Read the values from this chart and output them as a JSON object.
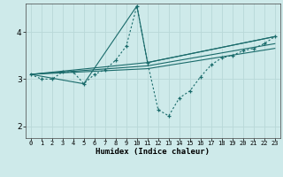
{
  "xlabel": "Humidex (Indice chaleur)",
  "background_color": "#ceeaea",
  "grid_color": "#b8d8d8",
  "line_color": "#1a6b6b",
  "xlim": [
    -0.5,
    23.5
  ],
  "ylim": [
    1.75,
    4.6
  ],
  "yticks": [
    2,
    3,
    4
  ],
  "xticks": [
    0,
    1,
    2,
    3,
    4,
    5,
    6,
    7,
    8,
    9,
    10,
    11,
    12,
    13,
    14,
    15,
    16,
    17,
    18,
    19,
    20,
    21,
    22,
    23
  ],
  "main_series": {
    "x": [
      0,
      1,
      2,
      3,
      4,
      5,
      6,
      7,
      8,
      9,
      10,
      11,
      12,
      13,
      14,
      15,
      16,
      17,
      18,
      19,
      20,
      21,
      22,
      23
    ],
    "y": [
      3.1,
      3.0,
      3.0,
      3.15,
      3.15,
      2.9,
      3.1,
      3.2,
      3.4,
      3.7,
      4.55,
      3.35,
      2.35,
      2.22,
      2.6,
      2.75,
      3.05,
      3.3,
      3.45,
      3.5,
      3.6,
      3.65,
      3.75,
      3.9
    ]
  },
  "extra_lines": [
    {
      "x": [
        0,
        5,
        10,
        11,
        23
      ],
      "y": [
        3.1,
        2.9,
        4.55,
        3.35,
        3.9
      ]
    },
    {
      "x": [
        0,
        11,
        23
      ],
      "y": [
        3.1,
        3.35,
        3.9
      ]
    },
    {
      "x": [
        0,
        11,
        23
      ],
      "y": [
        3.1,
        3.28,
        3.75
      ]
    },
    {
      "x": [
        0,
        11,
        23
      ],
      "y": [
        3.1,
        3.22,
        3.65
      ]
    }
  ]
}
